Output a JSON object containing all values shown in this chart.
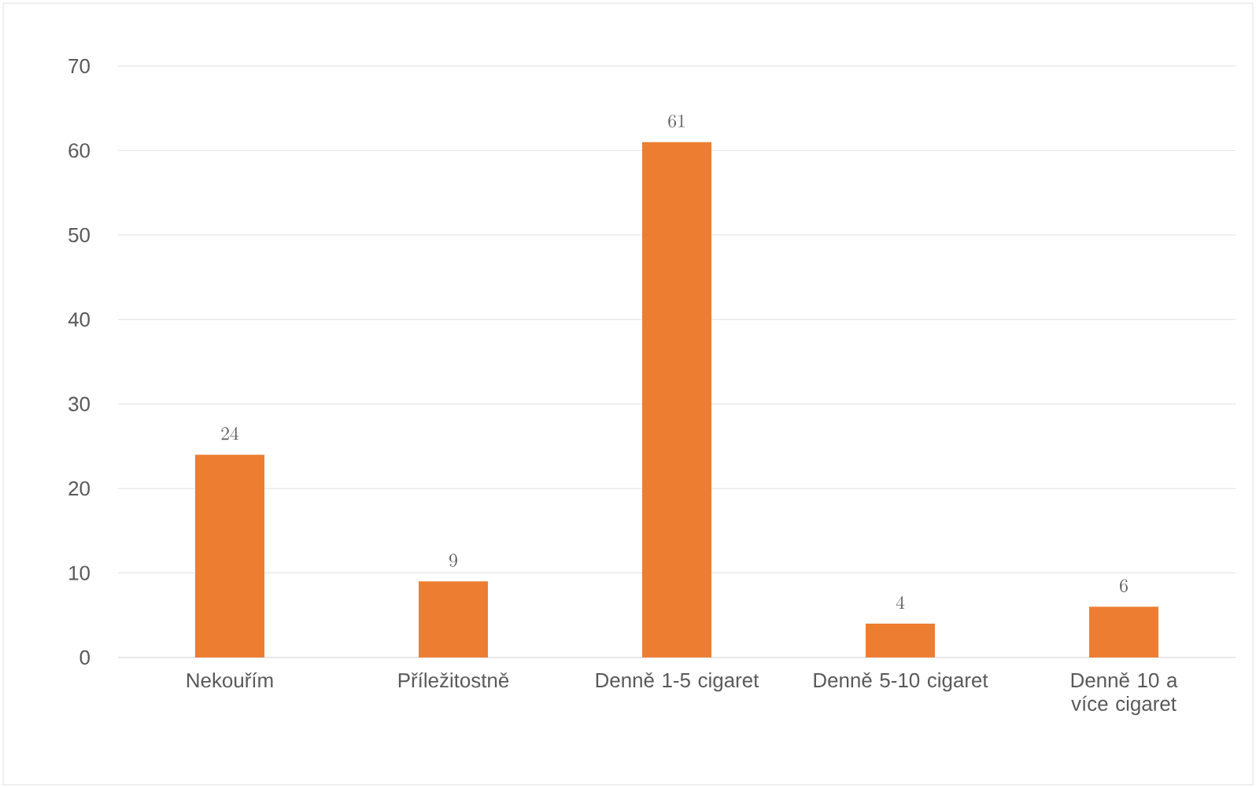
{
  "chart_data": {
    "type": "bar",
    "categories": [
      "Nekouřím",
      "Příležitostně",
      "Denně 1-5 cigaret",
      "Denně 5-10 cigaret",
      "Denně 10 a více cigaret"
    ],
    "values": [
      24,
      9,
      61,
      4,
      6
    ],
    "color": "#ed7d31",
    "ylim": [
      0,
      70
    ],
    "yticks": [
      0,
      10,
      20,
      30,
      40,
      50,
      60,
      70
    ],
    "grid": "y",
    "data_labels": true
  }
}
